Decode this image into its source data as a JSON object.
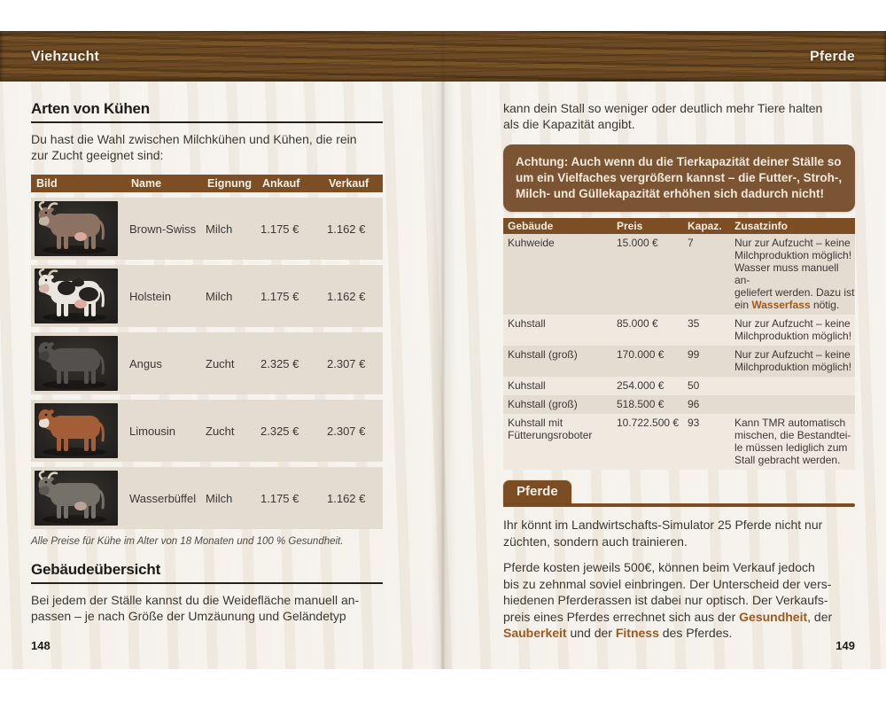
{
  "header": {
    "left_title": "Viehzucht",
    "right_title": "Pferde"
  },
  "colors": {
    "wood_brown": "#6e4b25",
    "table_header_brown": "#7d4e24",
    "warning_brown": "#7b5434",
    "tab_brown": "#7c4c22",
    "stripe_beige": "#e4dcd1",
    "stripe_light": "#efe9e0",
    "accent_text_brown": "#9c5a20",
    "paper": "#f2eee7"
  },
  "left_page": {
    "section1": {
      "title": "Arten von Kühen",
      "intro": "Du hast die Wahl zwischen Milchkühen und Kühen, die rein\nzur Zucht geeignet sind:"
    },
    "cow_table": {
      "headers": [
        "Bild",
        "Name",
        "Eignung",
        "Ankauf",
        "Verkauf"
      ],
      "rows": [
        {
          "name": "Brown-Swiss",
          "eignung": "Milch",
          "ankauf": "1.175 €",
          "verkauf": "1.162 €",
          "image": "brown-swiss-cow",
          "img": {
            "body": "#8c7263",
            "muzzle": "#c2b2a4",
            "horns": "#d3c9b8",
            "udder": "#d9a9a2",
            "patch": null
          }
        },
        {
          "name": "Holstein",
          "eignung": "Milch",
          "ankauf": "1.175 €",
          "verkauf": "1.162 €",
          "image": "holstein-cow",
          "img": {
            "body": "#e9e6e0",
            "muzzle": "#d8b9b2",
            "horns": "#d3c9b8",
            "udder": "#dfaaa2",
            "patch": "#25221f"
          }
        },
        {
          "name": "Angus",
          "eignung": "Zucht",
          "ankauf": "2.325 €",
          "verkauf": "2.307 €",
          "image": "angus-cow",
          "img": {
            "body": "#53504d",
            "muzzle": "#423f3c",
            "horns": null,
            "udder": null,
            "patch": null
          }
        },
        {
          "name": "Limousin",
          "eignung": "Zucht",
          "ankauf": "2.325 €",
          "verkauf": "2.307 €",
          "image": "limousin-cow",
          "img": {
            "body": "#a45e37",
            "muzzle": "#e9ded2",
            "horns": null,
            "udder": null,
            "patch": null
          }
        },
        {
          "name": "Wasserbüffel",
          "eignung": "Milch",
          "ankauf": "1.175 €",
          "verkauf": "1.162 €",
          "image": "water-buffalo",
          "img": {
            "body": "#757169",
            "muzzle": "#5d5a54",
            "horns": "#d9d2c2",
            "udder": "#b9a49c",
            "patch": null
          }
        }
      ],
      "caption": "Alle Preise für Kühe im Alter von 18 Monaten und 100 % Gesundheit."
    },
    "section2": {
      "title": "Gebäudeübersicht",
      "body": "Bei jedem der Ställe kannst du die Weidefläche manuell an-\npassen – je nach Größe der Umzäunung und Geländetyp"
    },
    "page_number": "148"
  },
  "right_page": {
    "intro": "kann dein Stall so weniger oder deutlich mehr Tiere halten\nals die Kapazität angibt.",
    "warning_box": "Achtung: Auch wenn du die Tierkapazität deiner Ställe so\num ein Vielfaches vergrößern kannst – die Futter-, Stroh-,\nMilch- und Güllekapazität erhöhen sich dadurch nicht!",
    "building_table": {
      "headers": [
        "Gebäude",
        "Preis",
        "Kapaz.",
        "Zusatzinfo"
      ],
      "rows": [
        {
          "gebaeude": "Kuhweide",
          "preis": "15.000 €",
          "kapaz": "7",
          "info_pre": "Nur zur Aufzucht – keine\nMilchproduktion möglich!\nWasser muss manuell an-\ngeliefert werden. Dazu ist\nein ",
          "info_bold": "Wasserfass",
          "info_post": " nötig."
        },
        {
          "gebaeude": "Kuhstall",
          "preis": "85.000 €",
          "kapaz": "35",
          "info": "Nur zur Aufzucht – keine\nMilchproduktion möglich!"
        },
        {
          "gebaeude": "Kuhstall (groß)",
          "preis": "170.000 €",
          "kapaz": "99",
          "info": "Nur zur Aufzucht – keine\nMilchproduktion möglich!"
        },
        {
          "gebaeude": "Kuhstall",
          "preis": "254.000 €",
          "kapaz": "50",
          "info": ""
        },
        {
          "gebaeude": "Kuhstall (groß)",
          "preis": "518.500 €",
          "kapaz": "96",
          "info": ""
        },
        {
          "gebaeude": "Kuhstall mit\nFütterungsroboter",
          "preis": "10.722.500 €",
          "kapaz": "93",
          "info": "Kann TMR automatisch\nmischen, die Bestandtei-\nle müssen lediglich zum\nStall gebracht werden."
        }
      ]
    },
    "pferde_section": {
      "tab_label": "Pferde",
      "para1": "Ihr könnt im Landwirtschafts-Simulator 25 Pferde nicht nur\nzüchten, sondern auch trainieren.",
      "para2_seg1": "Pferde kosten jeweils 500€, können beim Verkauf jedoch\nbis zu zehnmal soviel einbringen. Der Unterscheid der vers-\nhiedenen Pferderassen ist dabei nur optisch. Der Verkaufs-\npreis eines Pferdes errechnet sich aus der ",
      "para2_bold1": "Gesundheit",
      "para2_seg2": ", der\n",
      "para2_bold2": "Sauberkeit",
      "para2_seg3": " und der ",
      "para2_bold3": "Fitness",
      "para2_seg4": " des Pferdes."
    },
    "page_number": "149"
  }
}
